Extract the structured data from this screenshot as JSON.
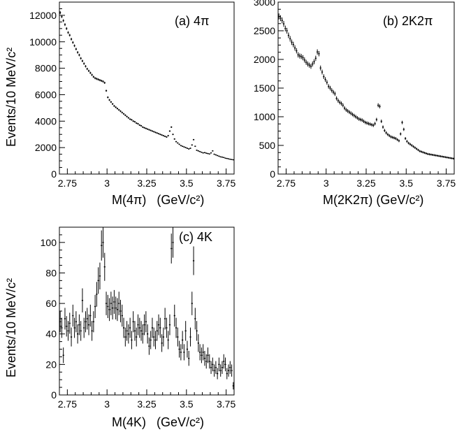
{
  "chart_data": [
    {
      "type": "scatter",
      "panel": "a",
      "title": "(a) 4π",
      "xlabel": "M(4π)   (GeV/c²)",
      "ylabel": "Events/10 MeV/c²",
      "xlim": [
        2.7,
        3.8
      ],
      "ylim": [
        0,
        13000
      ],
      "x_ticks": [
        2.75,
        3.0,
        3.25,
        3.5,
        3.75
      ],
      "x_tick_labels": [
        "2.75",
        "3",
        "3.25",
        "3.5",
        "3.75"
      ],
      "y_ticks": [
        0,
        2000,
        4000,
        6000,
        8000,
        10000,
        12000
      ],
      "y_tick_labels": [
        "0",
        "2000",
        "4000",
        "6000",
        "8000",
        "10000",
        "12000"
      ],
      "x": [
        2.705,
        2.715,
        2.725,
        2.735,
        2.745,
        2.755,
        2.765,
        2.775,
        2.785,
        2.795,
        2.805,
        2.815,
        2.825,
        2.835,
        2.845,
        2.855,
        2.865,
        2.875,
        2.885,
        2.895,
        2.905,
        2.915,
        2.925,
        2.935,
        2.945,
        2.955,
        2.965,
        2.975,
        2.985,
        2.995,
        3.005,
        3.015,
        3.025,
        3.035,
        3.045,
        3.055,
        3.065,
        3.075,
        3.085,
        3.095,
        3.105,
        3.115,
        3.125,
        3.135,
        3.145,
        3.155,
        3.165,
        3.175,
        3.185,
        3.195,
        3.205,
        3.215,
        3.225,
        3.235,
        3.245,
        3.255,
        3.265,
        3.275,
        3.285,
        3.295,
        3.305,
        3.315,
        3.325,
        3.335,
        3.345,
        3.355,
        3.365,
        3.375,
        3.385,
        3.395,
        3.405,
        3.415,
        3.425,
        3.435,
        3.445,
        3.455,
        3.465,
        3.475,
        3.485,
        3.495,
        3.505,
        3.515,
        3.525,
        3.535,
        3.545,
        3.555,
        3.565,
        3.575,
        3.585,
        3.595,
        3.605,
        3.615,
        3.625,
        3.635,
        3.645,
        3.655,
        3.665,
        3.675,
        3.685,
        3.695,
        3.705,
        3.715,
        3.725,
        3.735,
        3.745,
        3.755,
        3.765,
        3.775,
        3.785,
        3.795
      ],
      "y": [
        12200,
        11900,
        11600,
        11300,
        11000,
        10700,
        10500,
        10200,
        9950,
        9700,
        9450,
        9200,
        9000,
        8750,
        8550,
        8350,
        8150,
        7950,
        7800,
        7650,
        7500,
        7350,
        7250,
        7200,
        7150,
        7100,
        7050,
        7000,
        6900,
        6300,
        5800,
        5600,
        5450,
        5300,
        5150,
        5050,
        4950,
        4850,
        4750,
        4650,
        4550,
        4450,
        4350,
        4250,
        4150,
        4100,
        4000,
        3950,
        3850,
        3800,
        3700,
        3650,
        3550,
        3500,
        3450,
        3400,
        3350,
        3300,
        3250,
        3200,
        3150,
        3100,
        3050,
        3000,
        2950,
        2900,
        2850,
        2800,
        2900,
        3250,
        3550,
        3000,
        2650,
        2450,
        2350,
        2250,
        2150,
        2100,
        2050,
        2000,
        1950,
        1900,
        1950,
        2200,
        2600,
        2100,
        1800,
        1750,
        1700,
        1650,
        1600,
        1620,
        1580,
        1550,
        1520,
        1600,
        1750,
        1500,
        1450,
        1400,
        1350,
        1300,
        1280,
        1250,
        1200,
        1180,
        1150,
        1120,
        1100,
        1080
      ],
      "yerr": [
        110,
        109,
        108,
        106,
        105,
        103,
        102,
        101,
        100,
        98,
        97,
        96,
        95,
        94,
        92,
        91,
        90,
        89,
        88,
        87,
        87,
        86,
        85,
        85,
        85,
        84,
        84,
        84,
        83,
        79,
        76,
        75,
        74,
        73,
        72,
        71,
        70,
        70,
        69,
        68,
        67,
        67,
        66,
        65,
        64,
        64,
        63,
        63,
        62,
        62,
        61,
        60,
        60,
        59,
        59,
        58,
        58,
        57,
        57,
        57,
        56,
        56,
        55,
        55,
        54,
        54,
        53,
        53,
        54,
        57,
        60,
        55,
        51,
        49,
        48,
        47,
        46,
        46,
        45,
        45,
        44,
        44,
        44,
        47,
        51,
        46,
        42,
        42,
        41,
        41,
        40,
        40,
        40,
        39,
        39,
        40,
        42,
        39,
        38,
        37,
        37,
        36,
        36,
        35,
        35,
        34,
        34,
        33,
        33,
        33
      ]
    },
    {
      "type": "scatter",
      "panel": "b",
      "title": "(b) 2K2π",
      "xlabel": "M(2K2π) (GeV/c²)",
      "ylabel": "",
      "xlim": [
        2.7,
        3.8
      ],
      "ylim": [
        0,
        3000
      ],
      "x_ticks": [
        2.75,
        3.0,
        3.25,
        3.5,
        3.75
      ],
      "x_tick_labels": [
        "2.75",
        "3",
        "3.25",
        "3.5",
        "3.75"
      ],
      "y_ticks": [
        0,
        500,
        1000,
        1500,
        2000,
        2500,
        3000
      ],
      "y_tick_labels": [
        "0",
        "500",
        "1000",
        "1500",
        "2000",
        "2500",
        "3000"
      ],
      "x": [
        2.705,
        2.715,
        2.725,
        2.735,
        2.745,
        2.755,
        2.765,
        2.775,
        2.785,
        2.795,
        2.805,
        2.815,
        2.825,
        2.835,
        2.845,
        2.855,
        2.865,
        2.875,
        2.885,
        2.895,
        2.905,
        2.915,
        2.925,
        2.935,
        2.945,
        2.955,
        2.965,
        2.975,
        2.985,
        2.995,
        3.005,
        3.015,
        3.025,
        3.035,
        3.045,
        3.055,
        3.065,
        3.075,
        3.085,
        3.095,
        3.105,
        3.115,
        3.125,
        3.135,
        3.145,
        3.155,
        3.165,
        3.175,
        3.185,
        3.195,
        3.205,
        3.215,
        3.225,
        3.235,
        3.245,
        3.255,
        3.265,
        3.275,
        3.285,
        3.295,
        3.305,
        3.315,
        3.325,
        3.335,
        3.345,
        3.355,
        3.365,
        3.375,
        3.385,
        3.395,
        3.405,
        3.415,
        3.425,
        3.435,
        3.445,
        3.455,
        3.465,
        3.475,
        3.485,
        3.495,
        3.505,
        3.515,
        3.525,
        3.535,
        3.545,
        3.555,
        3.565,
        3.575,
        3.585,
        3.595,
        3.605,
        3.615,
        3.625,
        3.635,
        3.645,
        3.655,
        3.665,
        3.675,
        3.685,
        3.695,
        3.705,
        3.715,
        3.725,
        3.735,
        3.745,
        3.755,
        3.765,
        3.775,
        3.785,
        3.795
      ],
      "y": [
        2750,
        2720,
        2680,
        2620,
        2540,
        2500,
        2420,
        2360,
        2300,
        2260,
        2200,
        2150,
        2080,
        2060,
        2050,
        2030,
        1990,
        1950,
        1920,
        1900,
        1880,
        1920,
        1960,
        2020,
        2130,
        2100,
        1850,
        1780,
        1700,
        1650,
        1600,
        1530,
        1500,
        1460,
        1430,
        1400,
        1320,
        1280,
        1250,
        1230,
        1200,
        1150,
        1120,
        1100,
        1080,
        1060,
        1040,
        1020,
        1000,
        980,
        960,
        950,
        940,
        920,
        900,
        890,
        880,
        870,
        860,
        850,
        880,
        950,
        1200,
        1180,
        920,
        820,
        760,
        720,
        690,
        670,
        650,
        640,
        630,
        620,
        600,
        580,
        700,
        900,
        780,
        620,
        570,
        540,
        520,
        500,
        480,
        460,
        440,
        420,
        400,
        390,
        380,
        370,
        360,
        350,
        345,
        340,
        335,
        330,
        325,
        320,
        315,
        310,
        305,
        300,
        295,
        290,
        285,
        280,
        275,
        270
      ],
      "yerr": [
        52,
        52,
        52,
        51,
        50,
        50,
        49,
        49,
        48,
        48,
        47,
        46,
        46,
        45,
        45,
        45,
        45,
        44,
        44,
        44,
        43,
        44,
        44,
        45,
        46,
        46,
        43,
        42,
        41,
        41,
        40,
        39,
        39,
        38,
        38,
        37,
        36,
        36,
        35,
        35,
        35,
        34,
        33,
        33,
        33,
        33,
        32,
        32,
        32,
        31,
        31,
        31,
        31,
        30,
        30,
        30,
        30,
        29,
        29,
        29,
        30,
        31,
        35,
        34,
        30,
        29,
        28,
        27,
        26,
        26,
        25,
        25,
        25,
        25,
        24,
        24,
        26,
        30,
        28,
        25,
        24,
        23,
        23,
        22,
        22,
        21,
        21,
        20,
        20,
        20,
        19,
        19,
        19,
        19,
        19,
        18,
        18,
        18,
        18,
        18,
        18,
        18,
        17,
        17,
        17,
        17,
        17,
        17,
        17,
        16
      ]
    },
    {
      "type": "scatter",
      "panel": "c",
      "title": "(c) 4K",
      "xlabel": "M(4K)   (GeV/c²)",
      "ylabel": "Events/10 MeV/c²",
      "xlim": [
        2.7,
        3.8
      ],
      "ylim": [
        0,
        110
      ],
      "x_ticks": [
        2.75,
        3.0,
        3.25,
        3.5,
        3.75
      ],
      "x_tick_labels": [
        "2.75",
        "3",
        "3.25",
        "3.5",
        "3.75"
      ],
      "y_ticks": [
        0,
        20,
        40,
        60,
        80,
        100
      ],
      "y_tick_labels": [
        "0",
        "20",
        "40",
        "60",
        "80",
        "100"
      ],
      "x": [
        2.705,
        2.715,
        2.725,
        2.735,
        2.745,
        2.755,
        2.765,
        2.775,
        2.785,
        2.795,
        2.805,
        2.815,
        2.825,
        2.835,
        2.845,
        2.855,
        2.865,
        2.875,
        2.885,
        2.895,
        2.905,
        2.915,
        2.925,
        2.935,
        2.945,
        2.955,
        2.965,
        2.975,
        2.985,
        2.995,
        3.005,
        3.015,
        3.025,
        3.035,
        3.045,
        3.055,
        3.065,
        3.075,
        3.085,
        3.095,
        3.105,
        3.115,
        3.125,
        3.135,
        3.145,
        3.155,
        3.165,
        3.175,
        3.185,
        3.195,
        3.205,
        3.215,
        3.225,
        3.235,
        3.245,
        3.255,
        3.265,
        3.275,
        3.285,
        3.295,
        3.305,
        3.315,
        3.325,
        3.335,
        3.345,
        3.355,
        3.365,
        3.375,
        3.385,
        3.395,
        3.405,
        3.415,
        3.425,
        3.435,
        3.445,
        3.455,
        3.465,
        3.475,
        3.485,
        3.495,
        3.505,
        3.515,
        3.525,
        3.535,
        3.545,
        3.555,
        3.565,
        3.575,
        3.585,
        3.595,
        3.605,
        3.615,
        3.625,
        3.635,
        3.645,
        3.655,
        3.665,
        3.675,
        3.685,
        3.695,
        3.705,
        3.715,
        3.725,
        3.735,
        3.745,
        3.755,
        3.765,
        3.775,
        3.785,
        3.795
      ],
      "y": [
        48,
        44,
        26,
        50,
        45,
        42,
        47,
        38,
        52,
        44,
        48,
        40,
        46,
        42,
        62,
        44,
        48,
        50,
        46,
        52,
        42,
        48,
        58,
        66,
        75,
        78,
        98,
        100,
        84,
        60,
        58,
        56,
        60,
        57,
        61,
        57,
        56,
        60,
        55,
        52,
        44,
        38,
        42,
        40,
        44,
        36,
        48,
        42,
        38,
        46,
        44,
        42,
        40,
        46,
        48,
        40,
        32,
        36,
        44,
        38,
        36,
        42,
        46,
        44,
        34,
        38,
        50,
        44,
        36,
        46,
        96,
        100,
        52,
        44,
        38,
        30,
        28,
        36,
        28,
        42,
        30,
        24,
        38,
        60,
        88,
        50,
        42,
        34,
        28,
        26,
        28,
        24,
        22,
        26,
        22,
        18,
        20,
        16,
        18,
        14,
        20,
        16,
        18,
        22,
        20,
        14,
        16,
        18,
        16,
        6
      ],
      "yerr": [
        6.9,
        6.6,
        5.1,
        7.1,
        6.7,
        6.5,
        6.9,
        6.2,
        7.2,
        6.6,
        6.9,
        6.3,
        6.8,
        6.5,
        7.9,
        6.6,
        6.9,
        7.1,
        6.8,
        7.2,
        6.5,
        6.9,
        7.6,
        8.1,
        8.7,
        8.8,
        9.9,
        10.0,
        9.2,
        7.7,
        7.6,
        7.5,
        7.7,
        7.5,
        7.8,
        7.5,
        7.5,
        7.7,
        7.4,
        7.2,
        6.6,
        6.2,
        6.5,
        6.3,
        6.6,
        6.0,
        6.9,
        6.5,
        6.2,
        6.8,
        6.6,
        6.5,
        6.3,
        6.8,
        6.9,
        6.3,
        5.7,
        6.0,
        6.6,
        6.2,
        6.0,
        6.5,
        6.8,
        6.6,
        5.8,
        6.2,
        7.1,
        6.6,
        6.0,
        6.8,
        9.8,
        10.0,
        7.2,
        6.6,
        6.2,
        5.5,
        5.3,
        6.0,
        5.3,
        6.5,
        5.5,
        4.9,
        6.2,
        7.7,
        9.4,
        7.1,
        6.5,
        5.8,
        5.3,
        5.1,
        5.3,
        4.9,
        4.7,
        5.1,
        4.7,
        4.2,
        4.5,
        4.0,
        4.2,
        3.7,
        4.5,
        4.0,
        4.2,
        4.7,
        4.5,
        3.7,
        4.0,
        4.2,
        4.0,
        2.4
      ]
    }
  ]
}
